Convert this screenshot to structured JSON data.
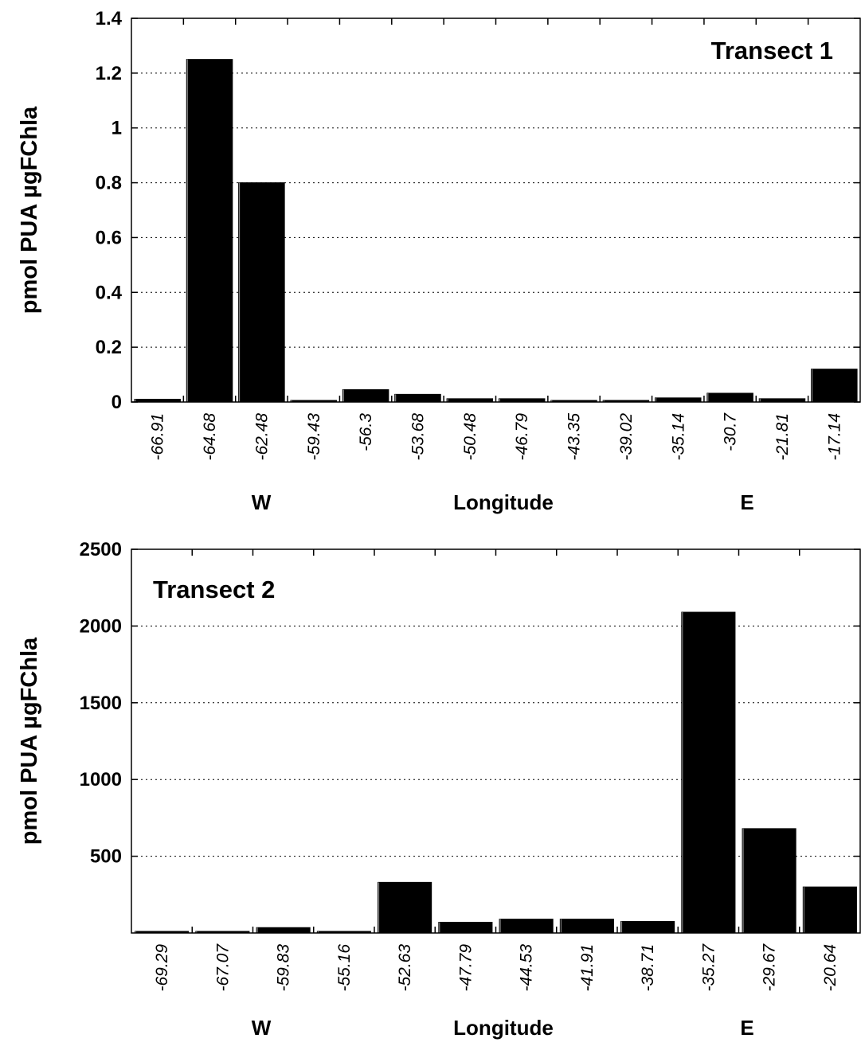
{
  "chart_data": [
    {
      "type": "bar",
      "title": "Transect 1",
      "ylabel": "pmol PUA µgFChla",
      "xlabel": "Longitude",
      "xlabel_west": "W",
      "xlabel_east": "E",
      "ylim": [
        0,
        1.4
      ],
      "yticks": [
        {
          "value": 0,
          "label": "0"
        },
        {
          "value": 0.2,
          "label": "0.2"
        },
        {
          "value": 0.4,
          "label": "0.4"
        },
        {
          "value": 0.6,
          "label": "0.6"
        },
        {
          "value": 0.8,
          "label": "0.8"
        },
        {
          "value": 1,
          "label": "1"
        },
        {
          "value": 1.2,
          "label": "1.2"
        },
        {
          "value": 1.4,
          "label": "1.4"
        }
      ],
      "grid": "horizontal-dotted",
      "categories": [
        "-66.91",
        "-64.68",
        "-62.48",
        "-59.43",
        "-56.3",
        "-53.68",
        "-50.48",
        "-46.79",
        "-43.35",
        "-39.02",
        "-35.14",
        "-30.7",
        "-21.81",
        "-17.14"
      ],
      "values": [
        0.01,
        1.25,
        0.8,
        0.005,
        0.045,
        0.028,
        0.012,
        0.012,
        0.005,
        0.005,
        0.015,
        0.032,
        0.012,
        0.12
      ]
    },
    {
      "type": "bar",
      "title": "Transect 2",
      "ylabel": "pmol PUA µgFChla",
      "xlabel": "Longitude",
      "xlabel_west": "W",
      "xlabel_east": "E",
      "ylim": [
        0,
        2500
      ],
      "yticks": [
        {
          "value": 500,
          "label": "500"
        },
        {
          "value": 1000,
          "label": "1000"
        },
        {
          "value": 1500,
          "label": "1500"
        },
        {
          "value": 2000,
          "label": "2000"
        },
        {
          "value": 2500,
          "label": "2500"
        }
      ],
      "grid": "horizontal-dotted",
      "categories": [
        "-69.29",
        "-67.07",
        "-59.83",
        "-55.16",
        "-52.63",
        "-47.79",
        "-44.53",
        "-41.91",
        "-38.71",
        "-35.27",
        "-29.67",
        "-20.64"
      ],
      "values": [
        10,
        10,
        35,
        10,
        330,
        70,
        90,
        90,
        75,
        2090,
        680,
        300
      ]
    }
  ]
}
